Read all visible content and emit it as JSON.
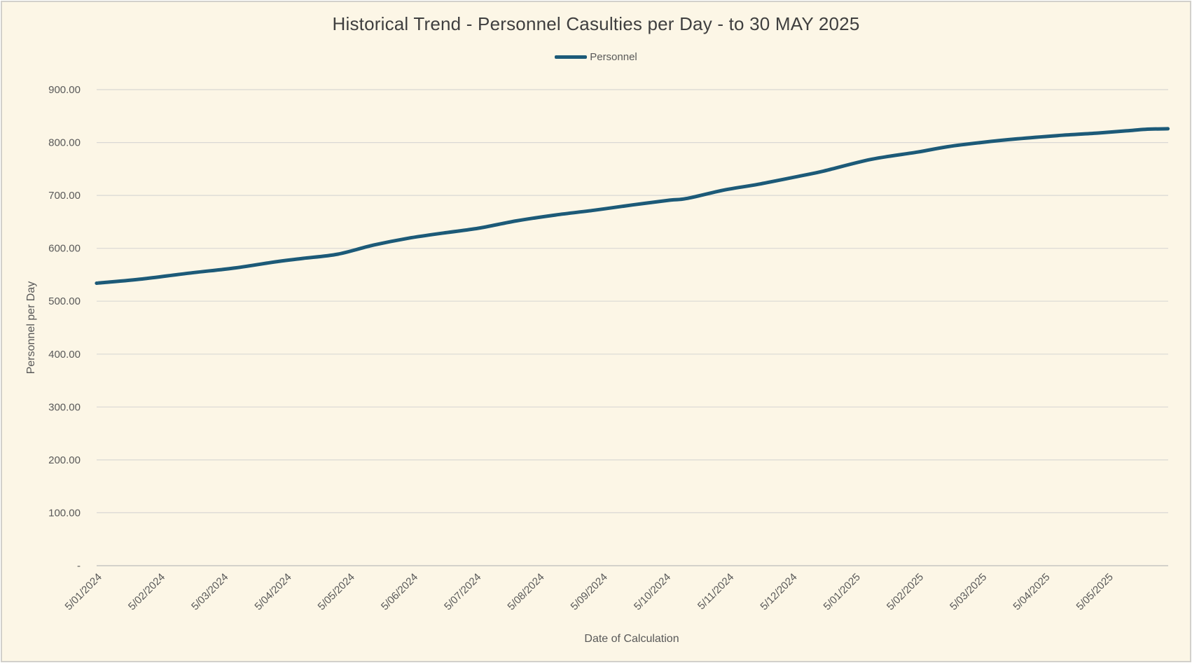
{
  "window": {
    "background": "#fcf6e6",
    "border_color": "#d2d0cb"
  },
  "chart_data": {
    "type": "line",
    "title": "Historical Trend - Personnel Casulties per Day - to 30 MAY 2025",
    "xlabel": "Date of Calculation",
    "ylabel": "Personnel per Day",
    "legend_position": "top",
    "grid": true,
    "ylim": [
      0,
      900
    ],
    "legend": [
      {
        "name": "Personnel",
        "color": "#1c5a78"
      }
    ],
    "x_tick_labels": [
      "5/01/2024",
      "5/02/2024",
      "5/03/2024",
      "5/04/2024",
      "5/05/2024",
      "5/06/2024",
      "5/07/2024",
      "5/08/2024",
      "5/09/2024",
      "5/10/2024",
      "5/11/2024",
      "5/12/2024",
      "5/01/2025",
      "5/02/2025",
      "5/03/2025",
      "5/04/2025",
      "5/05/2025"
    ],
    "y_ticks": [
      {
        "label": "900.00",
        "value": 900
      },
      {
        "label": "800.00",
        "value": 800
      },
      {
        "label": "700.00",
        "value": 700
      },
      {
        "label": "600.00",
        "value": 600
      },
      {
        "label": "500.00",
        "value": 500
      },
      {
        "label": "400.00",
        "value": 400
      },
      {
        "label": "300.00",
        "value": 300
      },
      {
        "label": "200.00",
        "value": 200
      },
      {
        "label": "100.00",
        "value": 100
      },
      {
        "label": "-",
        "value": 0
      }
    ],
    "series": [
      {
        "name": "Personnel",
        "color": "#1c5a78",
        "points": [
          {
            "m": -0.09,
            "v": 534
          },
          {
            "m": 0.0,
            "v": 535
          },
          {
            "m": 0.63,
            "v": 542
          },
          {
            "m": 1.37,
            "v": 553
          },
          {
            "m": 2.11,
            "v": 563
          },
          {
            "m": 2.77,
            "v": 575
          },
          {
            "m": 3.18,
            "v": 581
          },
          {
            "m": 3.73,
            "v": 589
          },
          {
            "m": 4.29,
            "v": 606
          },
          {
            "m": 4.84,
            "v": 619
          },
          {
            "m": 5.4,
            "v": 629
          },
          {
            "m": 5.95,
            "v": 638
          },
          {
            "m": 6.56,
            "v": 652
          },
          {
            "m": 7.17,
            "v": 663
          },
          {
            "m": 7.78,
            "v": 672
          },
          {
            "m": 8.39,
            "v": 682
          },
          {
            "m": 8.98,
            "v": 691
          },
          {
            "m": 9.24,
            "v": 694
          },
          {
            "m": 9.83,
            "v": 710
          },
          {
            "m": 10.38,
            "v": 721
          },
          {
            "m": 11.05,
            "v": 737
          },
          {
            "m": 11.41,
            "v": 746
          },
          {
            "m": 12.16,
            "v": 768
          },
          {
            "m": 12.9,
            "v": 782
          },
          {
            "m": 13.37,
            "v": 792
          },
          {
            "m": 13.9,
            "v": 800
          },
          {
            "m": 14.48,
            "v": 807
          },
          {
            "m": 15.11,
            "v": 813
          },
          {
            "m": 15.76,
            "v": 818
          },
          {
            "m": 16.2,
            "v": 822
          },
          {
            "m": 16.5,
            "v": 825
          },
          {
            "m": 16.86,
            "v": 826
          }
        ]
      }
    ],
    "colors": {
      "gridline": "#d9d8d4",
      "axis_line": "#c6c5c1",
      "tick_text": "#595959",
      "title_text": "#3f3f3f"
    }
  }
}
